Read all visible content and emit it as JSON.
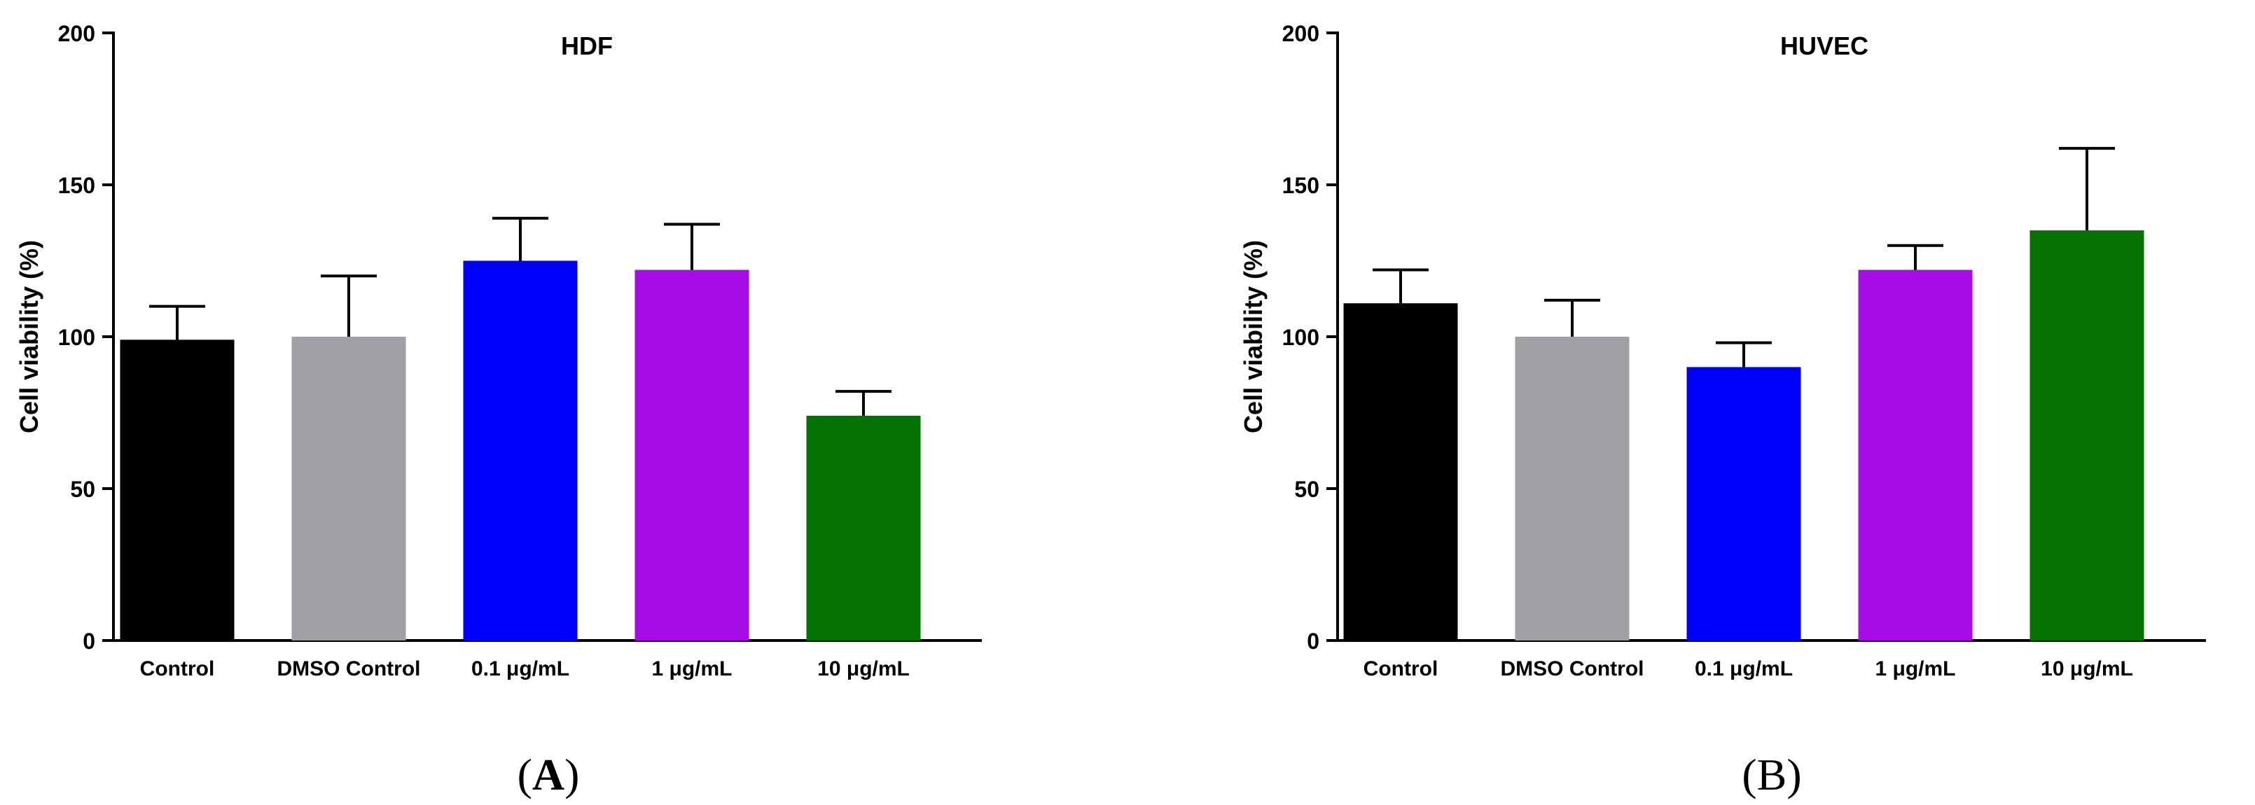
{
  "chart_data": [
    {
      "type": "bar",
      "title": "HDF",
      "ylabel": "Cell viability (%)",
      "xlabel": "",
      "ylim": [
        0,
        200
      ],
      "yticks": [
        0,
        50,
        100,
        150,
        200
      ],
      "categories": [
        "Control",
        "DMSO Control",
        "0.1 μg/mL",
        "1 μg/mL",
        "10 μg/mL"
      ],
      "values": [
        99,
        100,
        125,
        122,
        74
      ],
      "error_plus": [
        11,
        20,
        14,
        15,
        8
      ],
      "colors": [
        "#000000",
        "#a0a0a4",
        "#0000ff",
        "#a50ce6",
        "#037203"
      ],
      "panel_label": "A",
      "grid": false,
      "legend": "none"
    },
    {
      "type": "bar",
      "title": "HUVEC",
      "ylabel": "Cell viability (%)",
      "xlabel": "",
      "ylim": [
        0,
        200
      ],
      "yticks": [
        0,
        50,
        100,
        150,
        200
      ],
      "categories": [
        "Control",
        "DMSO Control",
        "0.1 μg/mL",
        "1 μg/mL",
        "10 μg/mL"
      ],
      "values": [
        111,
        100,
        90,
        122,
        135
      ],
      "error_plus": [
        11,
        12,
        8,
        8,
        27
      ],
      "colors": [
        "#000000",
        "#a0a0a4",
        "#0000ff",
        "#a50ce6",
        "#037203"
      ],
      "panel_label": "B",
      "grid": false,
      "legend": "none"
    }
  ]
}
